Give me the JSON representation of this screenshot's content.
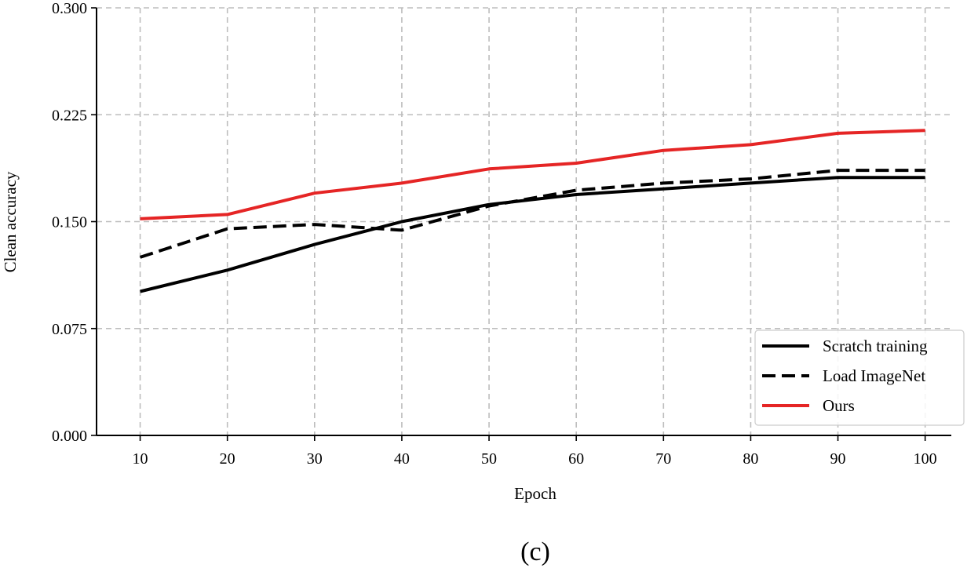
{
  "chart_data": {
    "type": "line",
    "xlabel": "Epoch",
    "ylabel": "Clean accuracy",
    "caption": "(c)",
    "x": [
      10,
      20,
      30,
      40,
      50,
      60,
      70,
      80,
      90,
      100
    ],
    "xlim": [
      5,
      103
    ],
    "ylim": [
      0.0,
      0.3
    ],
    "yticks": [
      0.0,
      0.075,
      0.15,
      0.225,
      0.3
    ],
    "ytick_labels": [
      "0.000",
      "0.075",
      "0.150",
      "0.225",
      "0.300"
    ],
    "xtick_labels": [
      "10",
      "20",
      "30",
      "40",
      "50",
      "60",
      "70",
      "80",
      "90",
      "100"
    ],
    "grid": true,
    "legend_position": "bottom-right",
    "series": [
      {
        "name": "Scratch training",
        "color": "#000000",
        "style": "solid",
        "values": [
          0.101,
          0.116,
          0.134,
          0.15,
          0.162,
          0.169,
          0.173,
          0.177,
          0.181,
          0.181
        ]
      },
      {
        "name": "Load ImageNet",
        "color": "#000000",
        "style": "dashed",
        "values": [
          0.125,
          0.145,
          0.148,
          0.144,
          0.161,
          0.172,
          0.177,
          0.18,
          0.186,
          0.186
        ]
      },
      {
        "name": "Ours",
        "color": "#e52525",
        "style": "solid",
        "values": [
          0.152,
          0.155,
          0.17,
          0.177,
          0.187,
          0.191,
          0.2,
          0.204,
          0.212,
          0.214
        ]
      }
    ]
  }
}
